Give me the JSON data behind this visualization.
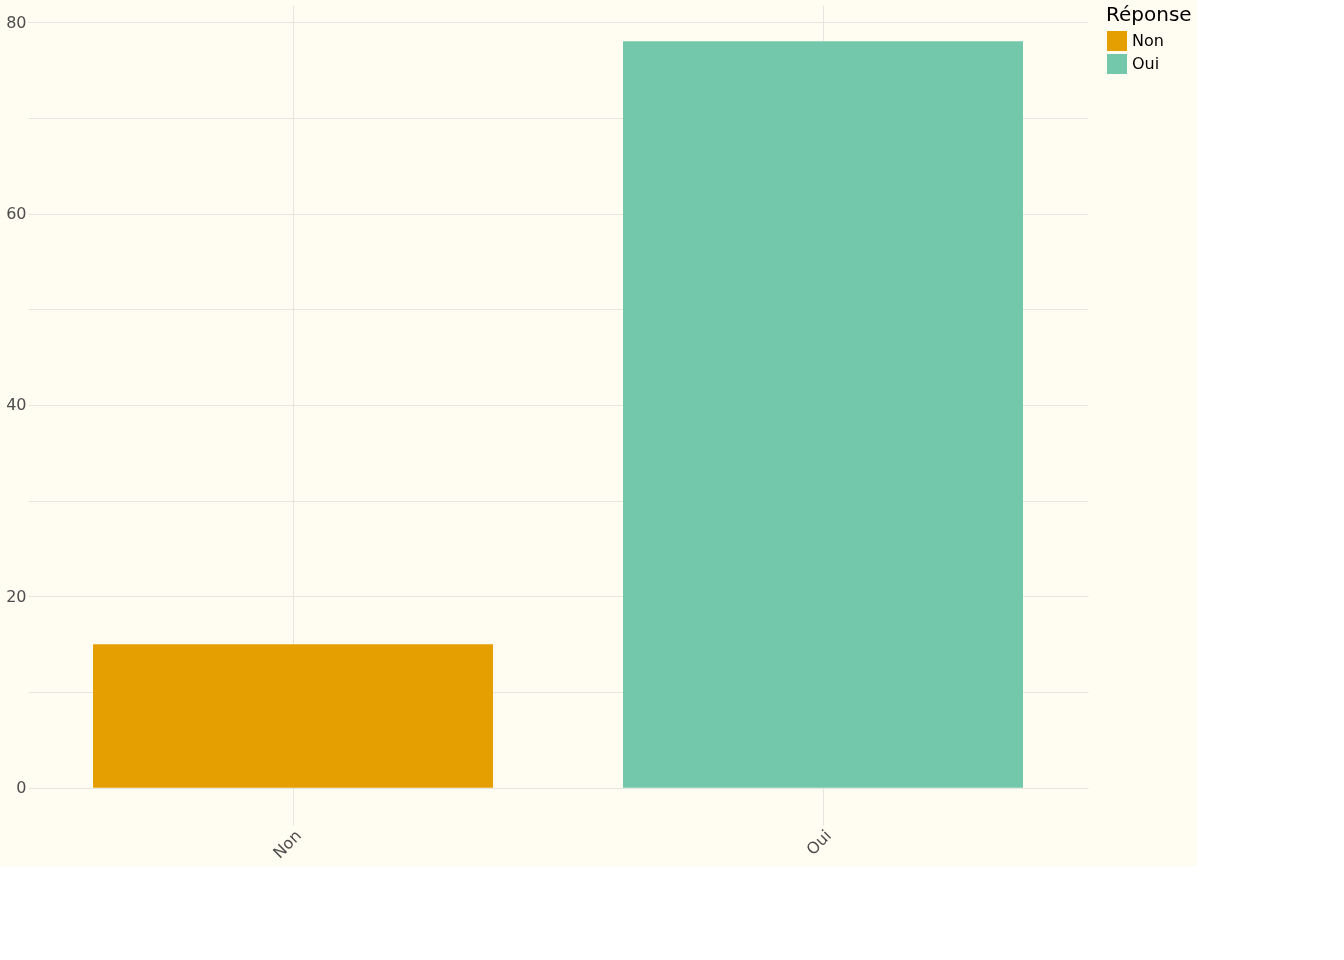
{
  "chart_data": {
    "type": "bar",
    "categories": [
      "Non",
      "Oui"
    ],
    "series": [
      {
        "name": "Non",
        "color": "#e69f00",
        "values": [
          15,
          null
        ]
      },
      {
        "name": "Oui",
        "color": "#73c8ab",
        "values": [
          null,
          78
        ]
      }
    ],
    "legend_title": "Réponse",
    "legend": "right",
    "grid": true,
    "ylim": [
      -3.9,
      81.8
    ],
    "yticks": [
      0,
      {
        "value": 10,
        "label": null
      },
      20,
      {
        "value": 30,
        "label": null
      },
      40,
      {
        "value": 50,
        "label": null
      },
      60,
      {
        "value": 70,
        "label": null
      },
      80
    ]
  }
}
